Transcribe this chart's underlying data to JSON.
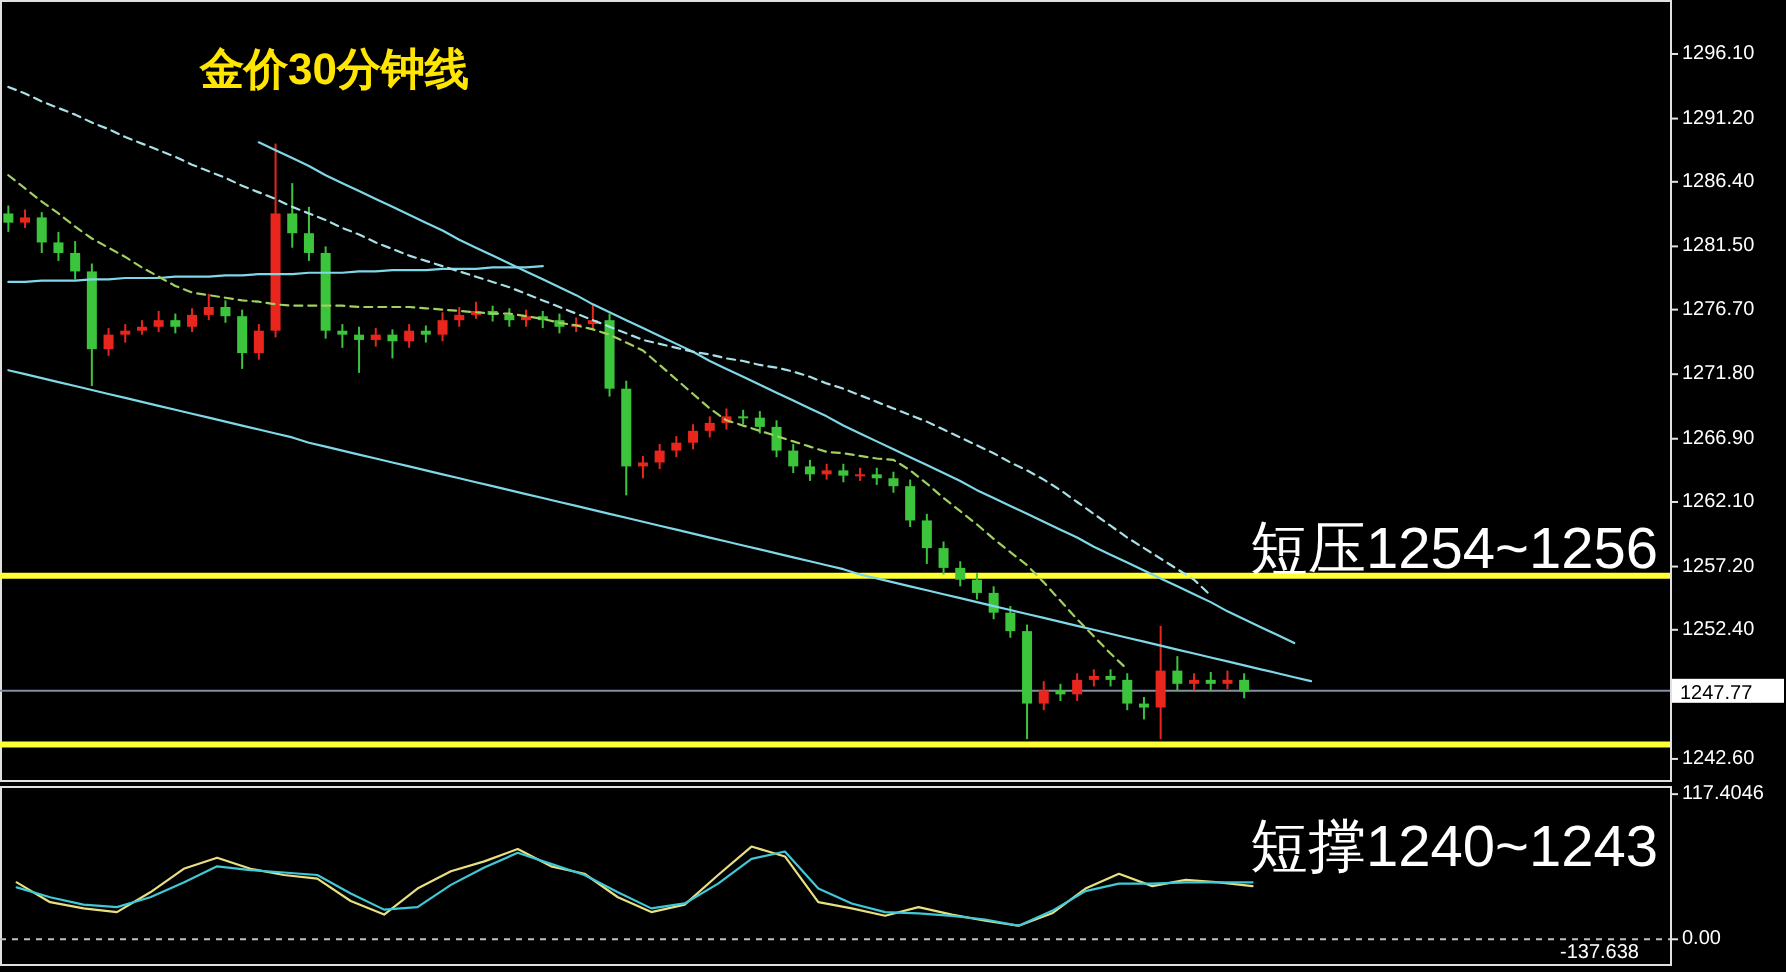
{
  "chart_data": [
    {
      "type": "candlestick",
      "title": "金价30分钟线",
      "tick_labels": "y",
      "categories": [
        null,
        null,
        null,
        null,
        null,
        null,
        null,
        null,
        null,
        null,
        null,
        null,
        null,
        null,
        null,
        null,
        null,
        null,
        null,
        null,
        null,
        null,
        null,
        null,
        null,
        null,
        null,
        null,
        null,
        null,
        null,
        null,
        null,
        null,
        null,
        null,
        null,
        null,
        null,
        null,
        null,
        null,
        null,
        null,
        null,
        null,
        null,
        null,
        null,
        null,
        null,
        null,
        null,
        null,
        null,
        null,
        null,
        null,
        null,
        null,
        null,
        null,
        null,
        null,
        null,
        null,
        null,
        null,
        null,
        null,
        null,
        null,
        null,
        null,
        null,
        null,
        null,
        null,
        null,
        null,
        null,
        null,
        null,
        null,
        null,
        null,
        null,
        null,
        null,
        null,
        null,
        null,
        null,
        null,
        null,
        null,
        null,
        null,
        null,
        null
      ],
      "ohlc": [
        [
          1284.0,
          1284.6,
          1282.6,
          1283.3
        ],
        [
          1283.3,
          1284.3,
          1282.9,
          1283.7
        ],
        [
          1283.7,
          1284.1,
          1281.0,
          1281.8
        ],
        [
          1281.8,
          1282.6,
          1280.4,
          1281.0
        ],
        [
          1281.0,
          1281.9,
          1279.0,
          1279.6
        ],
        [
          1279.6,
          1280.2,
          1270.9,
          1273.7
        ],
        [
          1273.7,
          1275.3,
          1273.2,
          1274.8
        ],
        [
          1274.8,
          1275.6,
          1274.2,
          1275.1
        ],
        [
          1275.1,
          1275.9,
          1274.8,
          1275.4
        ],
        [
          1275.4,
          1276.6,
          1275.0,
          1275.9
        ],
        [
          1275.9,
          1276.4,
          1274.9,
          1275.4
        ],
        [
          1275.4,
          1276.8,
          1275.0,
          1276.3
        ],
        [
          1276.3,
          1277.9,
          1275.9,
          1276.9
        ],
        [
          1276.9,
          1277.4,
          1275.7,
          1276.2
        ],
        [
          1276.2,
          1276.7,
          1272.2,
          1273.4
        ],
        [
          1273.4,
          1275.6,
          1272.9,
          1275.1
        ],
        [
          1275.1,
          1289.3,
          1274.6,
          1284.0
        ],
        [
          1284.0,
          1286.3,
          1281.4,
          1282.5
        ],
        [
          1282.5,
          1284.5,
          1280.4,
          1281.0
        ],
        [
          1281.0,
          1281.5,
          1274.5,
          1275.1
        ],
        [
          1275.1,
          1275.6,
          1273.8,
          1274.8
        ],
        [
          1274.8,
          1275.4,
          1271.9,
          1274.4
        ],
        [
          1274.4,
          1275.3,
          1273.9,
          1274.8
        ],
        [
          1274.8,
          1275.2,
          1273.0,
          1274.3
        ],
        [
          1274.3,
          1275.6,
          1273.8,
          1275.1
        ],
        [
          1275.1,
          1275.5,
          1274.2,
          1274.8
        ],
        [
          1274.8,
          1276.5,
          1274.3,
          1275.9
        ],
        [
          1275.9,
          1276.9,
          1275.4,
          1276.3
        ],
        [
          1276.3,
          1277.3,
          1276.0,
          1276.6
        ],
        [
          1276.6,
          1277.0,
          1275.8,
          1276.3
        ],
        [
          1276.3,
          1276.8,
          1275.4,
          1275.9
        ],
        [
          1275.9,
          1276.7,
          1275.4,
          1276.2
        ],
        [
          1276.2,
          1276.6,
          1275.3,
          1275.9
        ],
        [
          1275.9,
          1276.4,
          1274.9,
          1275.4
        ],
        [
          1275.4,
          1276.1,
          1275.0,
          1275.6
        ],
        [
          1275.6,
          1277.1,
          1275.2,
          1275.9
        ],
        [
          1275.9,
          1276.4,
          1270.1,
          1270.7
        ],
        [
          1270.7,
          1271.3,
          1262.6,
          1264.8
        ],
        [
          1264.8,
          1265.6,
          1263.9,
          1265.1
        ],
        [
          1265.1,
          1266.5,
          1264.6,
          1266.0
        ],
        [
          1266.0,
          1267.1,
          1265.5,
          1266.6
        ],
        [
          1266.6,
          1268.0,
          1266.1,
          1267.5
        ],
        [
          1267.5,
          1268.6,
          1267.0,
          1268.1
        ],
        [
          1268.1,
          1269.2,
          1267.6,
          1268.6
        ],
        [
          1268.6,
          1269.1,
          1268.0,
          1268.5
        ],
        [
          1268.5,
          1269.0,
          1267.3,
          1267.8
        ],
        [
          1267.8,
          1268.3,
          1265.5,
          1266.0
        ],
        [
          1266.0,
          1266.5,
          1264.3,
          1264.8
        ],
        [
          1264.8,
          1265.3,
          1263.7,
          1264.2
        ],
        [
          1264.2,
          1265.0,
          1263.8,
          1264.5
        ],
        [
          1264.5,
          1265.0,
          1263.6,
          1264.1
        ],
        [
          1264.1,
          1264.7,
          1263.7,
          1264.2
        ],
        [
          1264.2,
          1264.7,
          1263.4,
          1263.9
        ],
        [
          1263.9,
          1264.4,
          1262.8,
          1263.3
        ],
        [
          1263.3,
          1263.8,
          1260.2,
          1260.7
        ],
        [
          1260.7,
          1261.2,
          1257.4,
          1258.6
        ],
        [
          1258.6,
          1259.1,
          1256.6,
          1257.1
        ],
        [
          1257.1,
          1257.6,
          1255.7,
          1256.2
        ],
        [
          1256.2,
          1256.7,
          1254.7,
          1255.2
        ],
        [
          1255.2,
          1255.7,
          1253.2,
          1253.7
        ],
        [
          1253.7,
          1254.2,
          1251.8,
          1252.3
        ],
        [
          1252.3,
          1252.8,
          1244.1,
          1246.8
        ],
        [
          1246.8,
          1248.5,
          1246.3,
          1247.8
        ],
        [
          1247.8,
          1248.3,
          1247.0,
          1247.5
        ],
        [
          1247.5,
          1249.1,
          1247.0,
          1248.6
        ],
        [
          1248.6,
          1249.4,
          1248.1,
          1248.9
        ],
        [
          1248.9,
          1249.4,
          1248.1,
          1248.6
        ],
        [
          1248.6,
          1249.1,
          1246.3,
          1246.8
        ],
        [
          1246.8,
          1247.3,
          1245.6,
          1246.5
        ],
        [
          1246.5,
          1252.7,
          1244.1,
          1249.3
        ],
        [
          1249.3,
          1250.4,
          1247.8,
          1248.3
        ],
        [
          1248.3,
          1249.1,
          1247.8,
          1248.6
        ],
        [
          1248.6,
          1249.2,
          1247.8,
          1248.3
        ],
        [
          1248.3,
          1249.3,
          1247.9,
          1248.6
        ],
        [
          1248.6,
          1249.1,
          1247.2,
          1247.7
        ],
        null,
        null,
        null,
        null,
        null,
        null,
        null,
        null,
        null,
        null,
        null,
        null,
        null,
        null,
        null,
        null,
        null,
        null,
        null,
        null,
        null,
        null,
        null,
        null,
        null
      ],
      "series": [
        {
          "type": "line",
          "color": "#7fd8e8",
          "values": [
            null,
            null,
            null,
            null,
            null,
            null,
            null,
            null,
            null,
            null,
            null,
            null,
            null,
            null,
            null,
            1289.4,
            1288.8,
            1288.2,
            1287.6,
            1286.9,
            1286.3,
            1285.7,
            1285.1,
            1284.5,
            1283.9,
            1283.3,
            1282.7,
            1282.0,
            1281.4,
            1280.8,
            1280.2,
            1279.6,
            1279.0,
            1278.4,
            1277.8,
            1277.1,
            1276.5,
            1275.9,
            1275.3,
            1274.7,
            1274.1,
            1273.5,
            1272.8,
            1272.2,
            1271.6,
            1271.0,
            1270.4,
            1269.8,
            1269.2,
            1268.6,
            1267.9,
            1267.3,
            1266.7,
            1266.1,
            1265.5,
            1264.9,
            1264.3,
            1263.7,
            1263.0,
            1262.4,
            1261.8,
            1261.2,
            1260.6,
            1260.0,
            1259.4,
            1258.7,
            1258.1,
            1257.5,
            1256.9,
            1256.3,
            1255.7,
            1255.1,
            1254.5,
            1253.8,
            1253.2,
            1252.6,
            1252.0,
            1251.4,
            null,
            null,
            null,
            null,
            null,
            null,
            null,
            null,
            null,
            null,
            null,
            null,
            null,
            null,
            null,
            null,
            null,
            null,
            null,
            null,
            null,
            null
          ]
        },
        {
          "type": "line",
          "color": "#7fd8e8",
          "values": [
            1272.1,
            1271.8,
            1271.5,
            1271.2,
            1270.9,
            1270.6,
            1270.3,
            1270.0,
            1269.7,
            1269.4,
            1269.1,
            1268.8,
            1268.5,
            1268.2,
            1267.9,
            1267.6,
            1267.3,
            1267.0,
            1266.6,
            1266.3,
            1266.0,
            1265.7,
            1265.4,
            1265.1,
            1264.8,
            1264.5,
            1264.2,
            1263.9,
            1263.6,
            1263.3,
            1263.0,
            1262.7,
            1262.4,
            1262.1,
            1261.8,
            1261.5,
            1261.2,
            1260.9,
            1260.6,
            1260.3,
            1260.0,
            1259.7,
            1259.4,
            1259.1,
            1258.8,
            1258.5,
            1258.2,
            1257.9,
            1257.6,
            1257.3,
            1257.0,
            1256.6,
            1256.3,
            1256.0,
            1255.7,
            1255.4,
            1255.1,
            1254.8,
            1254.5,
            1254.2,
            1253.9,
            1253.6,
            1253.3,
            1253.0,
            1252.7,
            1252.4,
            1252.1,
            1251.8,
            1251.5,
            1251.2,
            1250.9,
            1250.6,
            1250.3,
            1250.0,
            1249.7,
            1249.4,
            1249.1,
            1248.8,
            1248.5,
            null,
            null,
            null,
            null,
            null,
            null,
            null,
            null,
            null,
            null,
            null,
            null,
            null,
            null,
            null,
            null,
            null,
            null,
            null,
            null,
            null
          ]
        },
        {
          "type": "line",
          "color": "#7fd8e8",
          "values": [
            1278.8,
            1278.8,
            1278.9,
            1278.9,
            1278.9,
            1279.0,
            1279.0,
            1279.1,
            1279.1,
            1279.1,
            1279.2,
            1279.2,
            1279.2,
            1279.3,
            1279.3,
            1279.4,
            1279.4,
            1279.4,
            1279.5,
            1279.5,
            1279.5,
            1279.6,
            1279.6,
            1279.7,
            1279.7,
            1279.7,
            1279.8,
            1279.8,
            1279.8,
            1279.9,
            1279.9,
            1279.9,
            1280.0,
            null,
            null,
            null,
            null,
            null,
            null,
            null,
            null,
            null,
            null,
            null,
            null,
            null,
            null,
            null,
            null,
            null,
            null,
            null,
            null,
            null,
            null,
            null,
            null,
            null,
            null,
            null,
            null,
            null,
            null,
            null,
            null,
            null,
            null,
            null,
            null,
            null,
            null,
            null,
            null,
            null,
            null,
            null,
            null,
            null,
            null,
            null,
            null,
            null,
            null,
            null,
            null,
            null,
            null,
            null,
            null,
            null,
            null,
            null,
            null,
            null,
            null,
            null,
            null,
            null,
            null,
            null
          ]
        },
        {
          "type": "line",
          "color": "#a8e0e8",
          "line_style": "dashed",
          "values": [
            1293.6,
            1293.1,
            1292.5,
            1292.0,
            1291.5,
            1290.9,
            1290.4,
            1289.8,
            1289.3,
            1288.8,
            1288.3,
            1287.7,
            1287.2,
            1286.7,
            1286.1,
            1285.6,
            1285.1,
            1284.5,
            1284.0,
            1283.5,
            1282.9,
            1282.4,
            1281.8,
            1281.3,
            1280.8,
            1280.4,
            1280.0,
            1279.6,
            1279.2,
            1278.8,
            1278.4,
            1277.9,
            1277.4,
            1276.9,
            1276.4,
            1275.9,
            1275.4,
            1274.9,
            1274.4,
            1274.1,
            1273.8,
            1273.5,
            1273.3,
            1273.0,
            1272.8,
            1272.5,
            1272.3,
            1272.0,
            1271.6,
            1271.1,
            1270.7,
            1270.2,
            1269.7,
            1269.2,
            1268.7,
            1268.2,
            1267.6,
            1267.0,
            1266.4,
            1265.8,
            1265.1,
            1264.5,
            1263.8,
            1263.0,
            1262.1,
            1261.2,
            1260.3,
            1259.4,
            1258.6,
            1257.8,
            1257.0,
            1256.2,
            1255.0,
            null,
            null,
            null,
            null,
            null,
            null,
            null,
            null,
            null,
            null,
            null,
            null,
            null,
            null,
            null,
            null,
            null,
            null,
            null,
            null,
            null,
            null,
            null,
            null,
            null,
            null,
            null
          ]
        },
        {
          "type": "line",
          "color": "#9fd060",
          "line_style": "dashed",
          "values": [
            1286.9,
            1285.9,
            1284.9,
            1284.0,
            1283.0,
            1282.1,
            1281.4,
            1280.7,
            1279.9,
            1279.2,
            1278.5,
            1278.0,
            1277.8,
            1277.6,
            1277.4,
            1277.3,
            1277.1,
            1277.0,
            1277.0,
            1277.0,
            1277.0,
            1276.9,
            1276.9,
            1276.9,
            1276.9,
            1276.8,
            1276.7,
            1276.6,
            1276.5,
            1276.4,
            1276.4,
            1276.2,
            1276.0,
            1275.7,
            1275.5,
            1275.2,
            1274.8,
            1274.2,
            1273.6,
            1272.5,
            1271.4,
            1270.3,
            1269.2,
            1268.3,
            1267.9,
            1267.5,
            1267.1,
            1266.7,
            1266.3,
            1265.9,
            1265.8,
            1265.6,
            1265.4,
            1265.3,
            1264.5,
            1263.5,
            1262.4,
            1261.4,
            1260.4,
            1259.3,
            1258.3,
            1257.3,
            1256.0,
            1254.6,
            1253.2,
            1251.9,
            1250.6,
            1249.4,
            null,
            null,
            null,
            null,
            null,
            null,
            null,
            null,
            null,
            null,
            null,
            null,
            null,
            null,
            null,
            null,
            null,
            null,
            null,
            null,
            null,
            null,
            null,
            null,
            null,
            null,
            null,
            null,
            null,
            null,
            null,
            null
          ]
        }
      ],
      "ylim": [
        1241.0,
        1300.2
      ],
      "yticks": [
        {
          "value": 1296.1,
          "label": "1296.10"
        },
        {
          "value": 1291.2,
          "label": "1291.20"
        },
        {
          "value": 1286.4,
          "label": "1286.40"
        },
        {
          "value": 1281.5,
          "label": "1281.50"
        },
        {
          "value": 1276.7,
          "label": "1276.70"
        },
        {
          "value": 1271.8,
          "label": "1271.80"
        },
        {
          "value": 1266.9,
          "label": "1266.90"
        },
        {
          "value": 1262.1,
          "label": "1262.10"
        },
        {
          "value": 1257.2,
          "label": "1257.20"
        },
        {
          "value": 1252.4,
          "label": "1252.40"
        },
        {
          "value": 1242.6,
          "label": "1242.60"
        }
      ],
      "ref_lines": [
        {
          "axis": "y",
          "value": 1256.5,
          "color": "#ffff33"
        },
        {
          "axis": "y",
          "value": 1243.7,
          "color": "#ffff33"
        },
        {
          "axis": "y",
          "value": 1247.77,
          "label": "1247.77",
          "color": "#8090a0"
        }
      ],
      "annotations": [
        "短压1254~1256",
        "短撑1240~1243"
      ]
    },
    {
      "type": "line",
      "tick_labels": "y",
      "categories": [
        null,
        null,
        null,
        null,
        null,
        null,
        null,
        null,
        null,
        null,
        null,
        null,
        null,
        null,
        null,
        null,
        null,
        null,
        null,
        null,
        null,
        null,
        null,
        null,
        null,
        null,
        null,
        null,
        null,
        null,
        null,
        null,
        null,
        null,
        null,
        null,
        null,
        null,
        null,
        null,
        null,
        null,
        null,
        null,
        null,
        null,
        null,
        null,
        null,
        null
      ],
      "series": [
        {
          "color": "#e8e080",
          "values": [
            46,
            30,
            25,
            22,
            38,
            57,
            66,
            57,
            52,
            49,
            31,
            20,
            41,
            55,
            63,
            73,
            59,
            53,
            34,
            22,
            28,
            52,
            75,
            67,
            30,
            25,
            19,
            26,
            20,
            15,
            11,
            21,
            41,
            53,
            43,
            48,
            46,
            43,
            null,
            null,
            null,
            null,
            null,
            null,
            null,
            null,
            null,
            null,
            null,
            null
          ]
        },
        {
          "color": "#40c8d8",
          "values": [
            42,
            34,
            28,
            26,
            34,
            46,
            59,
            56,
            54,
            52,
            37,
            24,
            26,
            44,
            58,
            70,
            61,
            52,
            38,
            25,
            29,
            45,
            65,
            71,
            41,
            29,
            22,
            21,
            19,
            16,
            11,
            23,
            39,
            45,
            45,
            46,
            46,
            46,
            null,
            null,
            null,
            null,
            null,
            null,
            null,
            null,
            null,
            null,
            null,
            null
          ]
        }
      ],
      "ylim": [
        -20,
        124
      ],
      "yticks": [
        {
          "value": 117.4046,
          "label": "117.4046"
        },
        {
          "value": 0,
          "label": "0.00"
        }
      ],
      "ref_lines": [
        {
          "axis": "y",
          "value": 0,
          "color": "#c0c0c0",
          "line_style": "dashed"
        }
      ],
      "annotations": [
        "-137.638"
      ]
    }
  ]
}
